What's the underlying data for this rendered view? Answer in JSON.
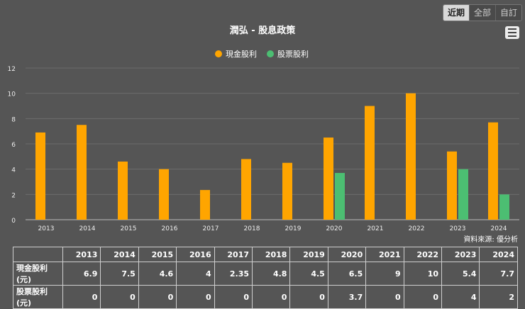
{
  "range_tabs": [
    "近期",
    "全部",
    "自訂"
  ],
  "range_active": "近期",
  "menu_icon": "hamburger-menu-icon",
  "colors": {
    "cash": "#FFA500",
    "stock": "#4CBE72",
    "grid": "#6c6c6c",
    "axis": "#bbbbbb"
  },
  "source_text": "資料來源: 優分析",
  "chart_data": {
    "type": "bar",
    "title": "潤弘 - 股息政策",
    "categories": [
      "2013",
      "2014",
      "2015",
      "2016",
      "2017",
      "2018",
      "2019",
      "2020",
      "2021",
      "2022",
      "2023",
      "2024"
    ],
    "series": [
      {
        "name": "現金股利",
        "values": [
          6.9,
          7.5,
          4.6,
          4,
          2.35,
          4.8,
          4.5,
          6.5,
          9,
          10,
          5.4,
          7.7
        ]
      },
      {
        "name": "股票股利",
        "values": [
          0,
          0,
          0,
          0,
          0,
          0,
          0,
          3.7,
          0,
          0,
          4,
          2
        ]
      }
    ],
    "yticks": [
      0,
      2,
      4,
      6,
      8,
      10,
      12
    ],
    "ylim": [
      0,
      12
    ],
    "grid": true,
    "legend_position": "top-center"
  },
  "table": {
    "rows": [
      {
        "label": "現金股利(元)",
        "values": [
          "6.9",
          "7.5",
          "4.6",
          "4",
          "2.35",
          "4.8",
          "4.5",
          "6.5",
          "9",
          "10",
          "5.4",
          "7.7"
        ]
      },
      {
        "label": "股票股利(元)",
        "values": [
          "0",
          "0",
          "0",
          "0",
          "0",
          "0",
          "0",
          "3.7",
          "0",
          "0",
          "4",
          "2"
        ]
      }
    ]
  }
}
